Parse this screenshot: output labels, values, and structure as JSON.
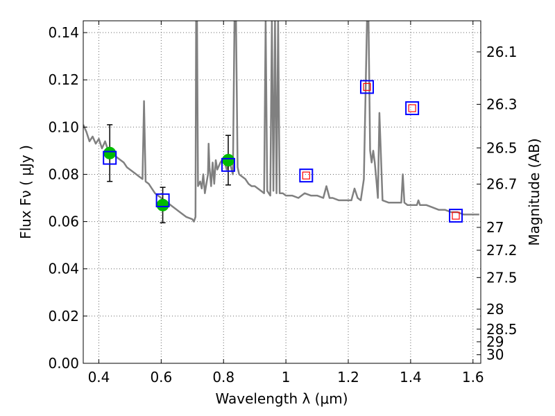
{
  "chart_data": {
    "type": "line",
    "xlabel": "Wavelength  λ (μm)",
    "ylabel": "Flux  Fν  ( μJy )",
    "y2label": "Magnitude (AB)",
    "xlim": [
      0.35,
      1.625
    ],
    "ylim": [
      0.0,
      0.145
    ],
    "grid": true,
    "x_ticks": [
      0.4,
      0.6,
      0.8,
      1.0,
      1.2,
      1.4,
      1.6
    ],
    "x_tick_labels": [
      "0.4",
      "0.6",
      "0.8",
      "1",
      "1.2",
      "1.4",
      "1.6"
    ],
    "y_ticks": [
      0.0,
      0.02,
      0.04,
      0.06,
      0.08,
      0.1,
      0.12,
      0.14
    ],
    "y_tick_labels": [
      "0.00",
      "0.02",
      "0.04",
      "0.06",
      "0.08",
      "0.10",
      "0.12",
      "0.14"
    ],
    "y2_ticks": [
      26.1,
      26.3,
      26.5,
      26.7,
      27,
      27.2,
      27.5,
      28,
      28.5,
      29,
      30
    ],
    "y2_tick_labels": [
      "26.1",
      "26.3",
      "26.5",
      "26.7",
      "27",
      "27.2",
      "27.5",
      "28",
      "28.5",
      "29",
      "30"
    ],
    "colors": {
      "spectrum": "#808080",
      "model_box": "#0000ff",
      "inner_marker": "#ff0000",
      "observed": "#00bb00",
      "grid": "#666666"
    },
    "spectrum": {
      "x": [
        0.35,
        0.36,
        0.37,
        0.38,
        0.39,
        0.4,
        0.41,
        0.42,
        0.43,
        0.44,
        0.45,
        0.46,
        0.47,
        0.48,
        0.49,
        0.5,
        0.51,
        0.52,
        0.53,
        0.54,
        0.545,
        0.55,
        0.56,
        0.57,
        0.58,
        0.59,
        0.6,
        0.62,
        0.64,
        0.66,
        0.68,
        0.7,
        0.705,
        0.71,
        0.712,
        0.715,
        0.718,
        0.725,
        0.73,
        0.735,
        0.74,
        0.745,
        0.75,
        0.752,
        0.755,
        0.76,
        0.765,
        0.77,
        0.775,
        0.78,
        0.79,
        0.8,
        0.81,
        0.82,
        0.83,
        0.835,
        0.84,
        0.845,
        0.85,
        0.86,
        0.87,
        0.88,
        0.89,
        0.9,
        0.91,
        0.92,
        0.93,
        0.935,
        0.94,
        0.945,
        0.95,
        0.955,
        0.96,
        0.965,
        0.97,
        0.975,
        0.98,
        0.99,
        1.0,
        1.02,
        1.04,
        1.06,
        1.08,
        1.1,
        1.12,
        1.13,
        1.14,
        1.15,
        1.17,
        1.19,
        1.21,
        1.22,
        1.23,
        1.24,
        1.25,
        1.26,
        1.265,
        1.27,
        1.275,
        1.28,
        1.285,
        1.29,
        1.295,
        1.3,
        1.31,
        1.33,
        1.35,
        1.37,
        1.375,
        1.38,
        1.39,
        1.41,
        1.42,
        1.425,
        1.43,
        1.45,
        1.47,
        1.49,
        1.51,
        1.53,
        1.55,
        1.57,
        1.59,
        1.6,
        1.62
      ],
      "y": [
        0.101,
        0.098,
        0.094,
        0.096,
        0.093,
        0.095,
        0.091,
        0.094,
        0.09,
        0.089,
        0.088,
        0.087,
        0.086,
        0.085,
        0.083,
        0.082,
        0.081,
        0.08,
        0.079,
        0.078,
        0.111,
        0.077,
        0.076,
        0.074,
        0.072,
        0.071,
        0.07,
        0.068,
        0.066,
        0.064,
        0.062,
        0.061,
        0.06,
        0.062,
        0.145,
        0.145,
        0.075,
        0.077,
        0.074,
        0.08,
        0.072,
        0.076,
        0.08,
        0.093,
        0.083,
        0.075,
        0.085,
        0.076,
        0.086,
        0.082,
        0.085,
        0.087,
        0.082,
        0.085,
        0.08,
        0.145,
        0.145,
        0.083,
        0.08,
        0.079,
        0.078,
        0.076,
        0.075,
        0.075,
        0.074,
        0.073,
        0.072,
        0.145,
        0.073,
        0.072,
        0.071,
        0.145,
        0.073,
        0.145,
        0.072,
        0.145,
        0.072,
        0.072,
        0.071,
        0.071,
        0.07,
        0.072,
        0.071,
        0.071,
        0.07,
        0.075,
        0.07,
        0.07,
        0.069,
        0.069,
        0.069,
        0.074,
        0.07,
        0.069,
        0.078,
        0.145,
        0.145,
        0.09,
        0.085,
        0.09,
        0.085,
        0.078,
        0.07,
        0.106,
        0.069,
        0.068,
        0.068,
        0.068,
        0.08,
        0.068,
        0.067,
        0.067,
        0.067,
        0.069,
        0.067,
        0.067,
        0.066,
        0.065,
        0.065,
        0.064,
        0.064,
        0.063,
        0.063,
        0.063,
        0.063
      ]
    },
    "model_points": {
      "x": [
        0.435,
        0.605,
        0.815,
        1.065,
        1.26,
        1.405,
        1.545
      ],
      "y": [
        0.087,
        0.069,
        0.084,
        0.0795,
        0.117,
        0.108,
        0.0625
      ]
    },
    "observed_points": {
      "x": [
        0.435,
        0.605,
        0.815
      ],
      "y": [
        0.089,
        0.067,
        0.086
      ],
      "yerr": [
        0.012,
        0.0075,
        0.0105
      ]
    }
  }
}
